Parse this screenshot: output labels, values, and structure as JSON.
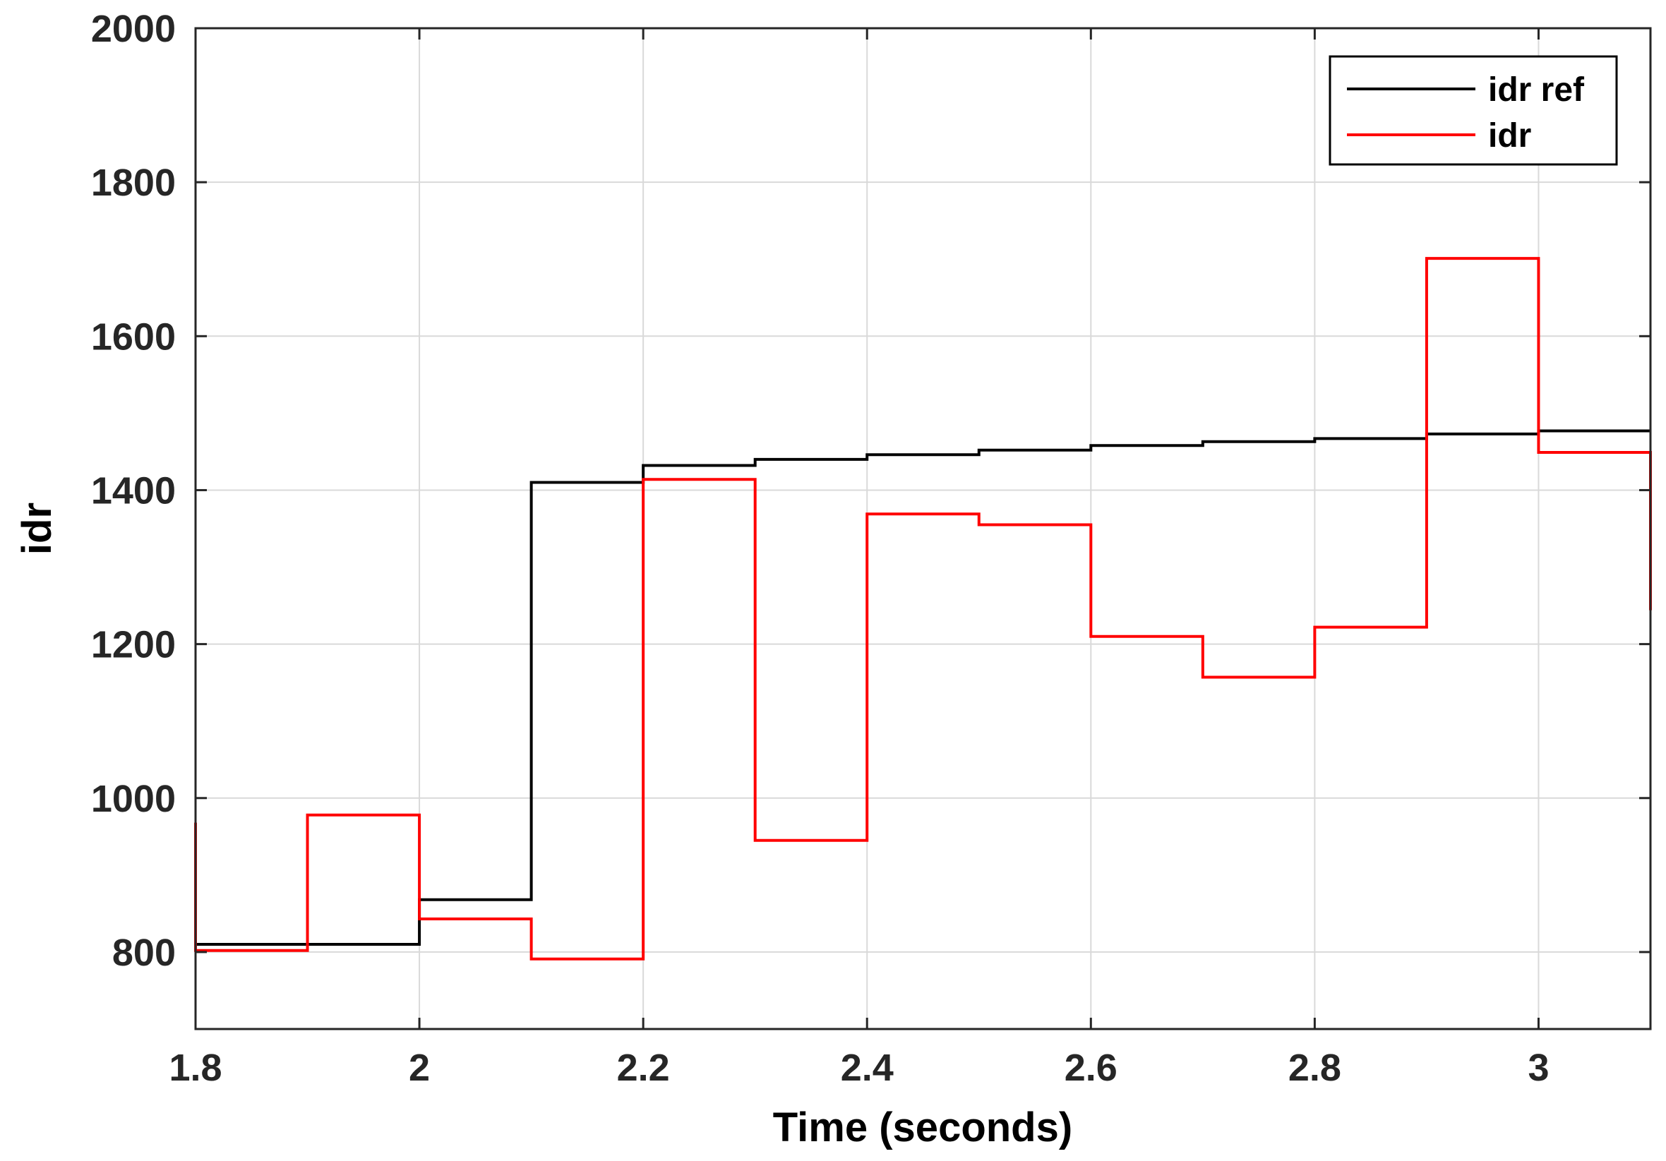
{
  "chart_data": {
    "type": "line",
    "step": true,
    "title": "",
    "xlabel": "Time (seconds)",
    "ylabel": "idr",
    "xlim": [
      1.8,
      3.1
    ],
    "ylim": [
      700,
      2000
    ],
    "grid": true,
    "legend_position": "top-right",
    "x_ticks": [
      1.8,
      2,
      2.2,
      2.4,
      2.6,
      2.8,
      3
    ],
    "x_tick_labels": [
      "1.8",
      "2",
      "2.2",
      "2.4",
      "2.6",
      "2.8",
      "3"
    ],
    "y_ticks": [
      800,
      1000,
      1200,
      1400,
      1600,
      1800,
      2000
    ],
    "y_tick_labels": [
      "800",
      "1000",
      "1200",
      "1400",
      "1600",
      "1800",
      "2000"
    ],
    "series": [
      {
        "name": "idr ref",
        "color": "#000000",
        "x": [
          1.8,
          2.0,
          2.1,
          2.2,
          2.3,
          2.4,
          2.5,
          2.6,
          2.7,
          2.8,
          2.9,
          3.0,
          3.1
        ],
        "values": [
          810,
          868,
          1410,
          1432,
          1440,
          1446,
          1452,
          1458,
          1463,
          1467,
          1473,
          1477,
          1477
        ]
      },
      {
        "name": "idr",
        "color": "#ff0000",
        "x": [
          1.8,
          1.9,
          2.0,
          2.1,
          2.2,
          2.3,
          2.4,
          2.5,
          2.6,
          2.7,
          2.8,
          2.9,
          3.0,
          3.1
        ],
        "values": [
          802,
          978,
          843,
          791,
          1414,
          945,
          1369,
          1355,
          1210,
          1157,
          1222,
          1701,
          1449,
          1244
        ],
        "start_value": 968
      }
    ]
  }
}
